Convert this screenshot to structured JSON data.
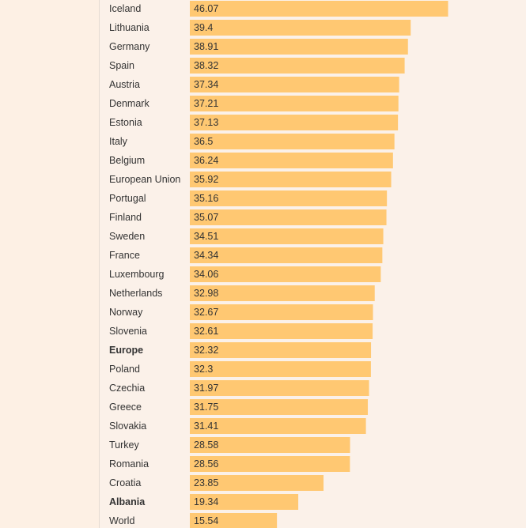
{
  "colors": {
    "bar": "#ffc872",
    "text": "#333333",
    "page_background": "#fdf0e4",
    "panel_background": "#fbf1e9"
  },
  "chart_data": {
    "type": "bar",
    "orientation": "horizontal",
    "categories": [
      "Iceland",
      "Lithuania",
      "Germany",
      "Spain",
      "Austria",
      "Denmark",
      "Estonia",
      "Italy",
      "Belgium",
      "European Union",
      "Portugal",
      "Finland",
      "Sweden",
      "France",
      "Luxembourg",
      "Netherlands",
      "Norway",
      "Slovenia",
      "Europe",
      "Poland",
      "Czechia",
      "Greece",
      "Slovakia",
      "Turkey",
      "Romania",
      "Croatia",
      "Albania",
      "World"
    ],
    "values": [
      46.07,
      39.4,
      38.91,
      38.32,
      37.34,
      37.21,
      37.13,
      36.5,
      36.24,
      35.92,
      35.16,
      35.07,
      34.51,
      34.34,
      34.06,
      32.98,
      32.67,
      32.61,
      32.32,
      32.3,
      31.97,
      31.75,
      31.41,
      28.58,
      28.56,
      23.85,
      19.34,
      15.54
    ],
    "value_labels": [
      "46.07",
      "39.4",
      "38.91",
      "38.32",
      "37.34",
      "37.21",
      "37.13",
      "36.5",
      "36.24",
      "35.92",
      "35.16",
      "35.07",
      "34.51",
      "34.34",
      "34.06",
      "32.98",
      "32.67",
      "32.61",
      "32.32",
      "32.3",
      "31.97",
      "31.75",
      "31.41",
      "28.58",
      "28.56",
      "23.85",
      "19.34",
      "15.54"
    ],
    "highlighted": [
      "Europe",
      "Albania"
    ],
    "xlim": [
      0,
      46.07
    ],
    "title": "",
    "xlabel": "",
    "ylabel": "",
    "grid": false,
    "legend": "none"
  }
}
